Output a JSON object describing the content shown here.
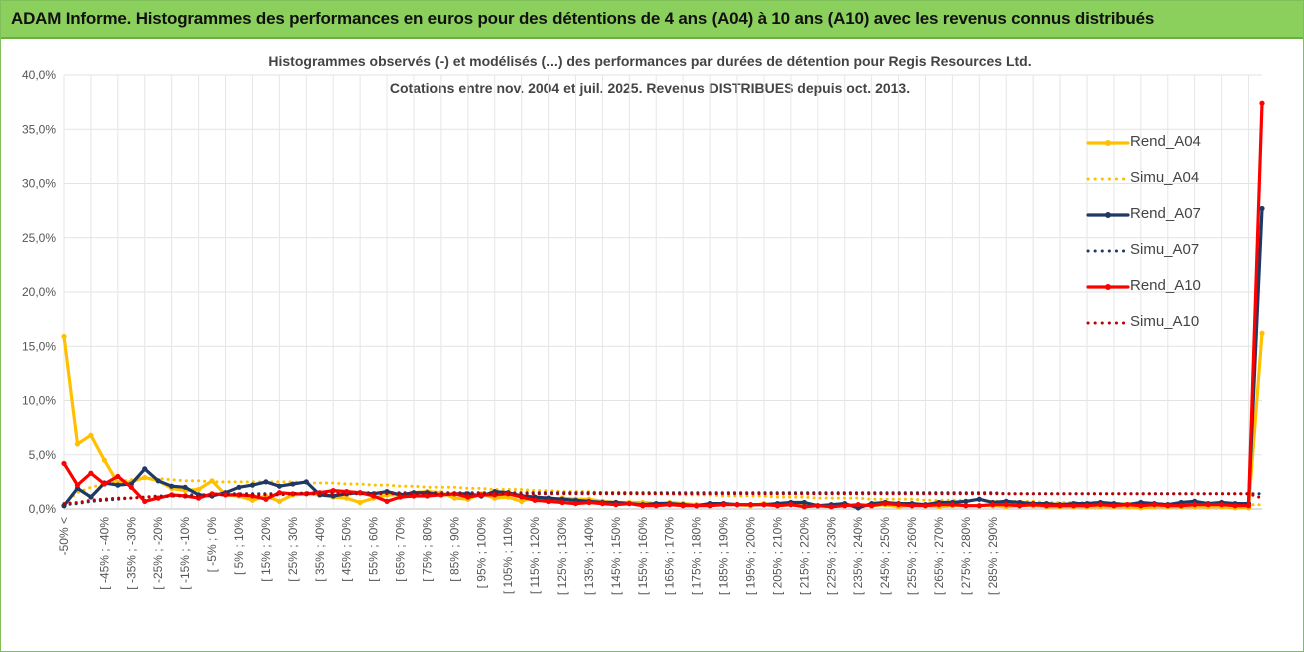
{
  "header": {
    "title": "ADAM Informe. Histogrammes des performances en euros pour des détentions de 4 ans (A04) à 10 ans (A10) avec les revenus connus distribués"
  },
  "chart_data": {
    "type": "line",
    "title": "Histogrammes observés (-) et modélisés (...) des performances par durées de détention pour Regis Resources Ltd.",
    "subtitle": "Cotations entre nov. 2004 et juil. 2025. Revenus DISTRIBUES depuis oct. 2013.",
    "xlabel": "",
    "ylabel": "",
    "ylim": [
      0,
      40
    ],
    "yticks": [
      "0,0%",
      "5,0%",
      "10,0%",
      "15,0%",
      "20,0%",
      "25,0%",
      "30,0%",
      "35,0%",
      "40,0%"
    ],
    "grid": true,
    "legend_position": "right",
    "x_labels": [
      "-50% <",
      "[ -45% ; -40%",
      "[ -35% ; -30%",
      "[ -25% ; -20%",
      "[ -15% ; -10%",
      "[ -5% ; 0%",
      "[ 5% ; 10%",
      "[ 15% ; 20%",
      "[ 25% ; 30%",
      "[ 35% ; 40%",
      "[ 45% ; 50%",
      "[ 55% ; 60%",
      "[ 65% ; 70%",
      "[ 75% ; 80%",
      "[ 85% ; 90%",
      "[ 95% ; 100%",
      "[ 105% ; 110%",
      "[ 115% ; 120%",
      "[ 125% ; 130%",
      "[ 135% ; 140%",
      "[ 145% ; 150%",
      "[ 155% ; 160%",
      "[ 165% ; 170%",
      "[ 175% ; 180%",
      "[ 185% ; 190%",
      "[ 195% ; 200%",
      "[ 205% ; 210%",
      "[ 215% ; 220%",
      "[ 225% ; 230%",
      "[ 235% ; 240%",
      "[ 245% ; 250%",
      "[ 255% ; 260%",
      "[ 265% ; 270%",
      "[ 275% ; 280%",
      "[ 285% ; 290%"
    ],
    "series": [
      {
        "name": "Rend_A04",
        "style": "solid",
        "color": "#FFC000",
        "values": [
          15.9,
          6.0,
          6.8,
          4.5,
          2.4,
          2.5,
          2.9,
          2.6,
          1.9,
          1.7,
          1.8,
          2.6,
          1.3,
          1.2,
          0.8,
          1.2,
          0.7,
          1.3,
          1.4,
          1.3,
          1.1,
          1.0,
          0.6,
          1.0,
          1.3,
          1.3,
          1.5,
          1.6,
          1.5,
          1.0,
          0.9,
          1.4,
          1.0,
          1.1,
          0.7,
          1.1,
          0.7,
          1.0,
          0.9,
          0.9,
          0.7,
          0.6,
          0.6,
          0.6,
          0.5,
          0.6,
          0.5,
          0.4,
          0.4,
          0.5,
          0.4,
          0.3,
          0.5,
          0.3,
          0.4,
          0.3,
          0.3,
          0.3,
          0.3,
          0.3,
          0.3,
          0.4,
          0.2,
          0.3,
          0.3,
          0.2,
          0.3,
          0.3,
          0.3,
          0.3,
          0.2,
          0.3,
          0.3,
          0.2,
          0.2,
          0.2,
          0.2,
          0.2,
          0.2,
          0.2,
          0.1,
          0.2,
          0.2,
          0.2,
          0.2,
          0.2,
          0.2,
          0.1,
          0.1,
          16.2
        ]
      },
      {
        "name": "Simu_A04",
        "style": "dotted",
        "color": "#FFC000",
        "values": [
          0.5,
          1.5,
          2.0,
          2.3,
          2.5,
          2.7,
          2.8,
          2.8,
          2.7,
          2.6,
          2.6,
          2.5,
          2.5,
          2.5,
          2.5,
          2.5,
          2.5,
          2.5,
          2.4,
          2.4,
          2.4,
          2.3,
          2.3,
          2.2,
          2.2,
          2.1,
          2.1,
          2.0,
          2.0,
          2.0,
          1.9,
          1.9,
          1.8,
          1.8,
          1.8,
          1.7,
          1.7,
          1.6,
          1.6,
          1.6,
          1.5,
          1.5,
          1.5,
          1.4,
          1.4,
          1.4,
          1.3,
          1.3,
          1.3,
          1.2,
          1.2,
          1.2,
          1.2,
          1.1,
          1.1,
          1.1,
          1.0,
          1.0,
          1.0,
          1.0,
          0.9,
          0.9,
          0.9,
          0.9,
          0.8,
          0.8,
          0.8,
          0.8,
          0.8,
          0.7,
          0.7,
          0.7,
          0.7,
          0.6,
          0.6,
          0.6,
          0.6,
          0.6,
          0.5,
          0.5,
          0.5,
          0.5,
          0.5,
          0.5,
          0.4,
          0.4,
          0.4,
          0.4,
          0.4,
          0.4
        ]
      },
      {
        "name": "Rend_A07",
        "style": "solid",
        "color": "#1F3864",
        "values": [
          0.3,
          1.9,
          1.1,
          2.4,
          2.2,
          2.3,
          3.7,
          2.6,
          2.1,
          2.0,
          1.3,
          1.2,
          1.5,
          2.0,
          2.2,
          2.5,
          2.1,
          2.3,
          2.5,
          1.3,
          1.2,
          1.4,
          1.5,
          1.4,
          1.6,
          1.3,
          1.5,
          1.5,
          1.3,
          1.4,
          1.4,
          1.2,
          1.6,
          1.5,
          1.2,
          1.1,
          1.0,
          0.9,
          0.8,
          0.7,
          0.6,
          0.6,
          0.5,
          0.4,
          0.5,
          0.5,
          0.4,
          0.3,
          0.5,
          0.5,
          0.4,
          0.4,
          0.4,
          0.5,
          0.6,
          0.6,
          0.3,
          0.4,
          0.5,
          0.1,
          0.5,
          0.6,
          0.5,
          0.5,
          0.4,
          0.6,
          0.6,
          0.7,
          0.9,
          0.6,
          0.7,
          0.6,
          0.5,
          0.5,
          0.4,
          0.5,
          0.5,
          0.6,
          0.5,
          0.4,
          0.6,
          0.5,
          0.4,
          0.6,
          0.7,
          0.5,
          0.6,
          0.5,
          0.5,
          27.7
        ]
      },
      {
        "name": "Simu_A07",
        "style": "dotted",
        "color": "#1F3864",
        "values": [
          0.4,
          0.5,
          0.7,
          0.8,
          0.9,
          1.0,
          1.1,
          1.2,
          1.2,
          1.3,
          1.3,
          1.3,
          1.4,
          1.4,
          1.4,
          1.4,
          1.4,
          1.4,
          1.5,
          1.5,
          1.5,
          1.5,
          1.5,
          1.5,
          1.5,
          1.5,
          1.5,
          1.5,
          1.5,
          1.5,
          1.5,
          1.5,
          1.5,
          1.5,
          1.5,
          1.5,
          1.5,
          1.5,
          1.5,
          1.5,
          1.5,
          1.5,
          1.5,
          1.5,
          1.5,
          1.5,
          1.5,
          1.5,
          1.5,
          1.5,
          1.5,
          1.5,
          1.5,
          1.5,
          1.5,
          1.5,
          1.5,
          1.5,
          1.5,
          1.5,
          1.5,
          1.5,
          1.5,
          1.5,
          1.5,
          1.5,
          1.5,
          1.5,
          1.5,
          1.5,
          1.4,
          1.4,
          1.4,
          1.4,
          1.4,
          1.4,
          1.4,
          1.4,
          1.4,
          1.4,
          1.4,
          1.4,
          1.4,
          1.4,
          1.4,
          1.4,
          1.4,
          1.4,
          1.4,
          1.4
        ]
      },
      {
        "name": "Rend_A10",
        "style": "solid",
        "color": "#FF0000",
        "values": [
          4.2,
          2.2,
          3.3,
          2.3,
          3.0,
          2.0,
          0.7,
          1.0,
          1.3,
          1.2,
          1.0,
          1.4,
          1.3,
          1.3,
          1.2,
          0.9,
          1.5,
          1.4,
          1.4,
          1.5,
          1.7,
          1.6,
          1.5,
          1.2,
          0.7,
          1.1,
          1.2,
          1.2,
          1.3,
          1.4,
          1.1,
          1.3,
          1.3,
          1.4,
          1.1,
          0.8,
          0.7,
          0.6,
          0.5,
          0.6,
          0.5,
          0.4,
          0.5,
          0.3,
          0.3,
          0.4,
          0.3,
          0.3,
          0.3,
          0.4,
          0.4,
          0.4,
          0.4,
          0.3,
          0.4,
          0.2,
          0.3,
          0.2,
          0.3,
          0.4,
          0.3,
          0.5,
          0.4,
          0.3,
          0.3,
          0.4,
          0.4,
          0.3,
          0.3,
          0.4,
          0.4,
          0.3,
          0.4,
          0.3,
          0.3,
          0.3,
          0.3,
          0.4,
          0.3,
          0.4,
          0.3,
          0.4,
          0.3,
          0.3,
          0.4,
          0.4,
          0.4,
          0.3,
          0.3,
          37.4
        ]
      },
      {
        "name": "Simu_A10",
        "style": "dotted",
        "color": "#C00000",
        "values": [
          0.5,
          0.6,
          0.8,
          0.9,
          1.0,
          1.0,
          1.1,
          1.1,
          1.2,
          1.2,
          1.2,
          1.3,
          1.3,
          1.3,
          1.3,
          1.3,
          1.3,
          1.4,
          1.4,
          1.4,
          1.4,
          1.4,
          1.4,
          1.4,
          1.4,
          1.4,
          1.4,
          1.4,
          1.4,
          1.4,
          1.4,
          1.4,
          1.4,
          1.4,
          1.4,
          1.4,
          1.4,
          1.4,
          1.4,
          1.4,
          1.4,
          1.4,
          1.4,
          1.4,
          1.4,
          1.4,
          1.4,
          1.4,
          1.4,
          1.4,
          1.4,
          1.4,
          1.4,
          1.4,
          1.4,
          1.4,
          1.4,
          1.4,
          1.4,
          1.4,
          1.4,
          1.4,
          1.4,
          1.4,
          1.4,
          1.4,
          1.4,
          1.4,
          1.4,
          1.4,
          1.4,
          1.4,
          1.4,
          1.4,
          1.4,
          1.4,
          1.4,
          1.4,
          1.4,
          1.4,
          1.4,
          1.4,
          1.4,
          1.4,
          1.4,
          1.4,
          1.4,
          1.4,
          1.4,
          1.0
        ]
      }
    ]
  }
}
